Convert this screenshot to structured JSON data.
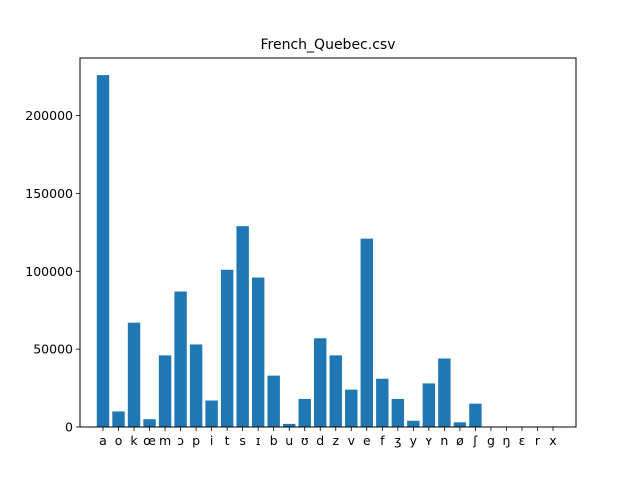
{
  "chart_data": {
    "type": "bar",
    "title": "French_Quebec.csv",
    "xlabel": "",
    "ylabel": "",
    "ylim": [
      0,
      237000
    ],
    "yticks": [
      0,
      50000,
      100000,
      150000,
      200000
    ],
    "grid": false,
    "bar_color": "#1f77b4",
    "categories": [
      "a",
      "o",
      "k",
      "œ",
      "m",
      "ɔ",
      "p",
      "i",
      "t",
      "s",
      "ɪ",
      "b",
      "u",
      "ʊ",
      "d",
      "z",
      "v",
      "e",
      "f",
      "ʒ",
      "y",
      "ʏ",
      "n",
      "ø",
      "ʃ",
      "g",
      "ŋ",
      "ɛ",
      "r",
      "x"
    ],
    "values": [
      226000,
      10000,
      67000,
      5000,
      46000,
      87000,
      53000,
      17000,
      101000,
      129000,
      96000,
      33000,
      2000,
      18000,
      57000,
      46000,
      24000,
      121000,
      31000,
      18000,
      4000,
      28000,
      44000,
      3000,
      15000,
      0,
      0,
      0,
      0,
      0
    ]
  }
}
